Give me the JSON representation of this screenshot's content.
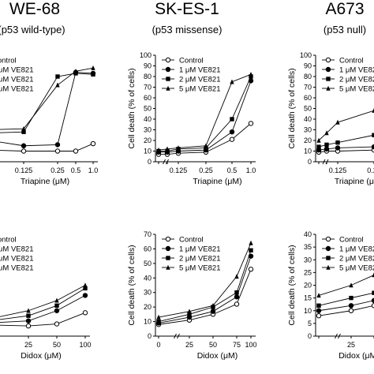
{
  "columns": [
    {
      "title": "WE-68",
      "subtitle": "(p53 wild-type)"
    },
    {
      "title": "SK-ES-1",
      "subtitle": "(p53 missense)"
    },
    {
      "title": "A673",
      "subtitle": "(p53 null)"
    }
  ],
  "legend": [
    "Control",
    "1 μM VE821",
    "2 μM VE821",
    "5 μM VE821"
  ],
  "colors": {
    "line": "#000000",
    "open_marker_fill": "#ffffff",
    "filled_marker": "#000000"
  },
  "chart_data": [
    {
      "type": "line",
      "panel": "WE-68 Triapine",
      "xlabel": "Triapine (μM)",
      "ylabel": "",
      "x": [
        0,
        0.0625,
        0.125,
        0.25,
        0.5,
        1.0
      ],
      "xticklabels": [
        "",
        "",
        "0.125",
        "0.25",
        "0.5",
        "1.0"
      ],
      "ylim": [
        0,
        100
      ],
      "yticks": [],
      "series": [
        {
          "name": "Control",
          "values": [
            12,
            11,
            10,
            10,
            10,
            17
          ]
        },
        {
          "name": "1 μM VE821",
          "values": [
            18,
            20,
            15,
            16,
            84,
            83
          ]
        },
        {
          "name": "2 μM VE821",
          "values": [
            20,
            27,
            28,
            80,
            83,
            82
          ]
        },
        {
          "name": "5 μM VE821",
          "values": [
            23,
            30,
            31,
            72,
            85,
            88
          ]
        }
      ]
    },
    {
      "type": "line",
      "panel": "SK-ES-1 Triapine",
      "xlabel": "Triapine (μM)",
      "ylabel": "Cell death (% of cells)",
      "x": [
        0,
        0.0625,
        0.125,
        0.25,
        0.5,
        1.0
      ],
      "xticklabels": [
        "",
        "",
        "0.125",
        "0.25",
        "0.5",
        "1.0"
      ],
      "ylim": [
        0,
        100
      ],
      "yticks": [
        0,
        10,
        20,
        30,
        40,
        50,
        60,
        70,
        80,
        90,
        100
      ],
      "series": [
        {
          "name": "Control",
          "values": [
            7,
            7,
            8,
            9,
            21,
            36
          ]
        },
        {
          "name": "1 μM VE821",
          "values": [
            9,
            9,
            10,
            11,
            28,
            76
          ]
        },
        {
          "name": "2 μM VE821",
          "values": [
            10,
            10,
            12,
            13,
            40,
            80
          ]
        },
        {
          "name": "5 μM VE821",
          "values": [
            11,
            12,
            13,
            15,
            75,
            82
          ]
        }
      ]
    },
    {
      "type": "line",
      "panel": "A673 Triapine",
      "xlabel": "Triapine (μM)",
      "ylabel": "Cell death (% of cells)",
      "x": [
        0,
        0.0625,
        0.125,
        0.25
      ],
      "xticklabels": [
        "",
        "",
        "0.125",
        "0.25"
      ],
      "ylim": [
        0,
        100
      ],
      "yticks": [
        0,
        10,
        20,
        30,
        40,
        50,
        60,
        70,
        80,
        90,
        100
      ],
      "series": [
        {
          "name": "Control",
          "values": [
            9,
            10,
            10,
            11
          ]
        },
        {
          "name": "1 μM VE821",
          "values": [
            11,
            12,
            13,
            14
          ]
        },
        {
          "name": "2 μM VE821",
          "values": [
            14,
            16,
            18,
            25
          ]
        },
        {
          "name": "5 μM VE821",
          "values": [
            20,
            27,
            37,
            48
          ]
        }
      ]
    },
    {
      "type": "line",
      "panel": "WE-68 Didox",
      "xlabel": "Didox (μM)",
      "ylabel": "",
      "x": [
        0,
        12.5,
        25,
        50,
        100
      ],
      "xticklabels": [
        "",
        "",
        "25",
        "50",
        "100"
      ],
      "ylim": [
        0,
        100
      ],
      "yticks": [],
      "series": [
        {
          "name": "Control",
          "values": [
            10,
            11,
            10,
            12,
            23
          ]
        },
        {
          "name": "1 μM VE821",
          "values": [
            13,
            13,
            15,
            25,
            40
          ]
        },
        {
          "name": "2 μM VE821",
          "values": [
            14,
            15,
            20,
            30,
            47
          ]
        },
        {
          "name": "5 μM VE821",
          "values": [
            16,
            17,
            25,
            35,
            50
          ]
        }
      ]
    },
    {
      "type": "line",
      "panel": "SK-ES-1 Didox",
      "xlabel": "Didox (μM)",
      "ylabel": "Cell death (% of cells)",
      "x": [
        0,
        25,
        50,
        75,
        100
      ],
      "xticklabels": [
        "0",
        "25",
        "50",
        "75",
        "100"
      ],
      "ylim": [
        0,
        70
      ],
      "yticks": [
        0,
        10,
        20,
        30,
        40,
        50,
        60,
        70
      ],
      "series": [
        {
          "name": "Control",
          "values": [
            8,
            11,
            15,
            22,
            46
          ]
        },
        {
          "name": "1 μM VE821",
          "values": [
            9,
            13,
            17,
            27,
            55
          ]
        },
        {
          "name": "2 μM VE821",
          "values": [
            10,
            15,
            20,
            30,
            59
          ]
        },
        {
          "name": "5 μM VE821",
          "values": [
            13,
            17,
            21,
            41,
            64
          ]
        }
      ]
    },
    {
      "type": "line",
      "panel": "A673 Didox",
      "xlabel": "Didox (μM)",
      "ylabel": "Cell death (% of cells)",
      "x": [
        0,
        25,
        50,
        75
      ],
      "xticklabels": [
        "",
        "25",
        "",
        ""
      ],
      "ylim": [
        0,
        40
      ],
      "yticks": [
        0,
        5,
        10,
        15,
        20,
        25,
        30,
        35,
        40
      ],
      "series": [
        {
          "name": "Control",
          "values": [
            8,
            10,
            12,
            12
          ]
        },
        {
          "name": "1 μM VE821",
          "values": [
            10,
            12,
            14,
            14
          ]
        },
        {
          "name": "2 μM VE821",
          "values": [
            12,
            15,
            17,
            17
          ]
        },
        {
          "name": "5 μM VE821",
          "values": [
            16,
            20,
            24,
            24
          ]
        }
      ]
    }
  ]
}
